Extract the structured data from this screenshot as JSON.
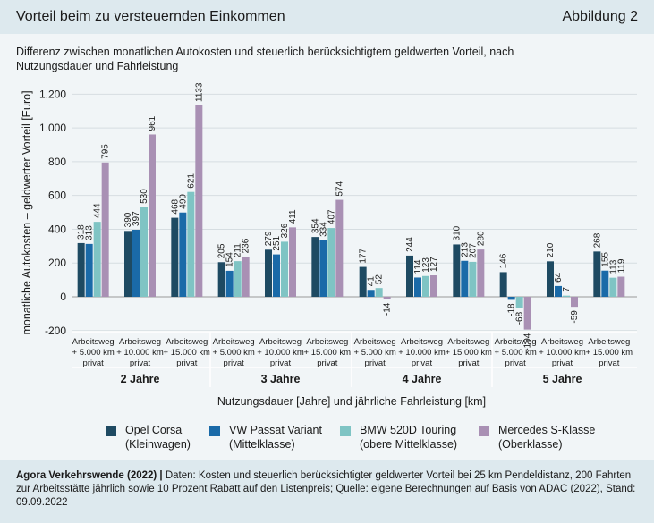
{
  "header": {
    "title": "Vorteil beim zu versteuernden Einkommen",
    "figure": "Abbildung 2"
  },
  "subtitle": "Differenz zwischen monatlichen Autokosten und steuerlich berücksichtigtem geldwerten Vorteil, nach Nutzungsdauer und Fahrleistung",
  "footer": {
    "source_bold": "Agora Verkehrswende (2022) |",
    "source_text": " Daten: Kosten und steuerlich berücksichtigter geldwerter Vorteil bei 25 km Pendeldistanz, 200 Fahrten zur Arbeitsstätte jährlich sowie 10 Prozent Rabatt auf den Listenpreis; Quelle: eigene Berechnungen auf Basis von ADAC (2022), Stand: 09.09.2022"
  },
  "chart_data": {
    "type": "bar",
    "ylabel": "monatliche Autokosten – geldwerter  Vorteil [Euro]",
    "xlabel": "Nutzungsdauer [Jahre] und jährliche Fahrleistung [km]",
    "ylim": [
      -200,
      1200
    ],
    "yticks": [
      -200,
      0,
      200,
      400,
      600,
      800,
      "1.000",
      "1.200"
    ],
    "ytick_values": [
      -200,
      0,
      200,
      400,
      600,
      800,
      1000,
      1200
    ],
    "groups": [
      "2 Jahre",
      "3 Jahre",
      "4 Jahre",
      "5 Jahre"
    ],
    "subcategories": [
      [
        "Arbeitsweg",
        "+ 5.000 km",
        "privat"
      ],
      [
        "Arbeitsweg",
        "+ 10.000 km",
        "privat"
      ],
      [
        "Arbeitsweg",
        "+ 15.000 km",
        "privat"
      ]
    ],
    "series": [
      {
        "name": "Opel Corsa",
        "sub": "(Kleinwagen)",
        "color": "#1e4a62",
        "values": [
          318,
          390,
          468,
          205,
          279,
          354,
          177,
          244,
          310,
          146,
          210,
          268
        ]
      },
      {
        "name": "VW Passat Variant",
        "sub": "(Mittelklasse)",
        "color": "#1a6aa8",
        "values": [
          313,
          397,
          499,
          154,
          251,
          334,
          41,
          114,
          213,
          -18,
          64,
          155
        ]
      },
      {
        "name": "BMW 520D Touring",
        "sub": "(obere Mittelklasse)",
        "color": "#7fc4c4",
        "values": [
          444,
          530,
          621,
          211,
          326,
          407,
          52,
          123,
          207,
          -68,
          7,
          113
        ]
      },
      {
        "name": "Mercedes S-Klasse",
        "sub": "(Oberklasse)",
        "color": "#a990b4",
        "values": [
          795,
          961,
          1133,
          236,
          411,
          574,
          -14,
          127,
          280,
          -194,
          -59,
          119
        ]
      }
    ]
  }
}
